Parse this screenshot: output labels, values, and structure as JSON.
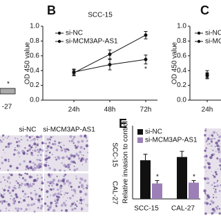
{
  "chart_data": [
    {
      "type": "line",
      "panel": "B",
      "title": "SCC-15",
      "ylabel": "OD 450 value",
      "categories": [
        "24h",
        "48h",
        "72h"
      ],
      "series": [
        {
          "name": "si-NC",
          "color": "#111111",
          "values": [
            0.37,
            0.62,
            0.88
          ],
          "errors": [
            0.04,
            0.06,
            0.05
          ]
        },
        {
          "name": "si-MCM3AP-AS1",
          "color": "#111111",
          "values": [
            0.38,
            0.48,
            0.55
          ],
          "errors": [
            0.04,
            0.07,
            0.06
          ]
        }
      ],
      "annotations": [
        "*"
      ],
      "ylim": [
        0,
        1.0
      ],
      "yticks": [
        {
          "value": 0,
          "label": "0.0"
        },
        0.2,
        0.4,
        0.6,
        0.8,
        {
          "value": 1,
          "label": "1.0"
        }
      ]
    },
    {
      "type": "line",
      "panel": "C",
      "ylabel": "OD 450 value",
      "categories": [
        "24h"
      ],
      "series": [
        {
          "name": "si-NC",
          "color": "#111111",
          "values": [
            0.35
          ],
          "errors": [
            0.05
          ]
        },
        {
          "name": "si-MCM",
          "color": "#111111",
          "values": [
            0.33
          ],
          "errors": [
            0.04
          ]
        }
      ],
      "ylim": [
        0,
        1.0
      ],
      "yticks": [
        {
          "value": 0,
          "label": "0.0"
        },
        0.2,
        0.4,
        0.6,
        0.8,
        {
          "value": 1,
          "label": "1.0"
        }
      ]
    },
    {
      "type": "bar",
      "panel": "E",
      "ylabel": "Relative invasion to control",
      "categories": [
        "SCC-15",
        "CAL-27"
      ],
      "series": [
        {
          "name": "si-NC",
          "color": "#111111",
          "values": [
            0.95,
            1.03
          ],
          "errors": [
            0.15,
            0.14
          ]
        },
        {
          "name": "si-MCM3AP-AS1",
          "color": "#9b7fb6",
          "values": [
            0.38,
            0.4
          ],
          "errors": [
            0.07,
            0.05
          ]
        }
      ],
      "annotations": [
        "*",
        "*"
      ],
      "ylim": [
        0,
        1.8
      ]
    }
  ],
  "left_panel": {
    "asterisk": "*",
    "label": "-27"
  },
  "images": {
    "columns": [
      "si-NC",
      "si-MCM3AP-AS1"
    ],
    "rows": [
      "SCC-15",
      "CAL-27"
    ]
  }
}
